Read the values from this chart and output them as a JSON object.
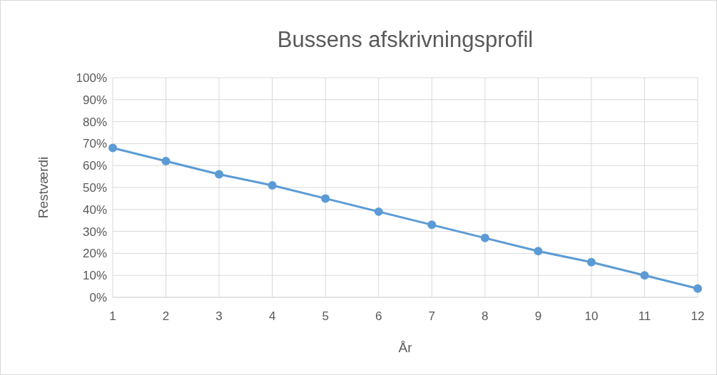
{
  "chart_data": {
    "type": "line",
    "title": "Bussens afskrivningsprofil",
    "xlabel": "År",
    "ylabel": "Restværdi",
    "x": [
      1,
      2,
      3,
      4,
      5,
      6,
      7,
      8,
      9,
      10,
      11,
      12
    ],
    "xlim": [
      1,
      12
    ],
    "xticks": [
      1,
      2,
      3,
      4,
      5,
      6,
      7,
      8,
      9,
      10,
      11,
      12
    ],
    "series": [
      {
        "color": "#5b9bd5",
        "values": [
          68,
          62,
          56,
          51,
          45,
          39,
          33,
          27,
          21,
          16,
          10,
          4
        ]
      }
    ],
    "ylim": [
      0,
      100
    ],
    "yticks": [
      {
        "value": 0,
        "label": "0%"
      },
      {
        "value": 10,
        "label": "10%"
      },
      {
        "value": 20,
        "label": "20%"
      },
      {
        "value": 30,
        "label": "30%"
      },
      {
        "value": 40,
        "label": "40%"
      },
      {
        "value": 50,
        "label": "50%"
      },
      {
        "value": 60,
        "label": "60%"
      },
      {
        "value": 70,
        "label": "70%"
      },
      {
        "value": 80,
        "label": "80%"
      },
      {
        "value": 90,
        "label": "90%"
      },
      {
        "value": 100,
        "label": "100%"
      }
    ],
    "grid": true,
    "marker": "circle",
    "line_style": "solid"
  }
}
